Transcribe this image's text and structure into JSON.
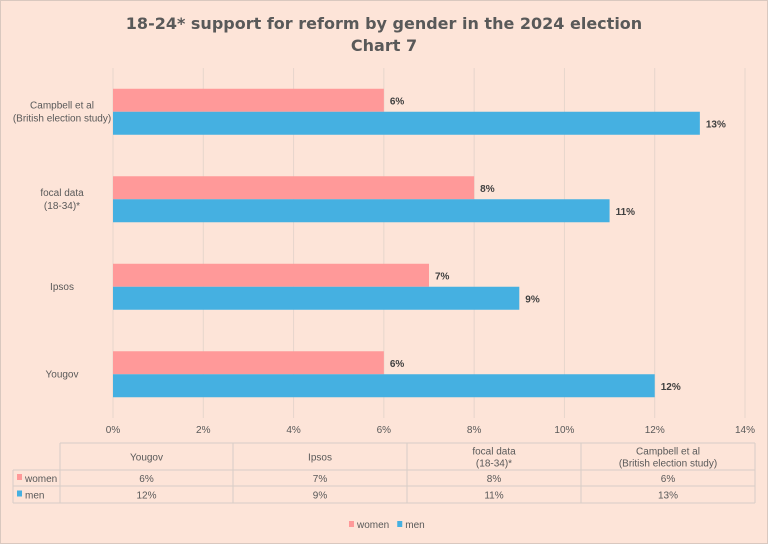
{
  "chart_data": {
    "type": "bar",
    "orientation": "horizontal",
    "title": "18-24* support for reform by gender in the 2024 election",
    "subtitle": "Chart 7",
    "categories": [
      [
        "Yougov"
      ],
      [
        "Ipsos"
      ],
      [
        "focal data",
        "(18-34)*"
      ],
      [
        "Campbell et al",
        "(British election study)"
      ]
    ],
    "series": [
      {
        "name": "women",
        "color": "#ff9999",
        "values": [
          6,
          7,
          8,
          6
        ],
        "labels": [
          "6%",
          "7%",
          "8%",
          "6%"
        ]
      },
      {
        "name": "men",
        "color": "#45b0e1",
        "values": [
          12,
          9,
          11,
          13
        ],
        "labels": [
          "12%",
          "9%",
          "11%",
          "13%"
        ]
      }
    ],
    "xlim": [
      0,
      14
    ],
    "xticks": [
      "0%",
      "2%",
      "4%",
      "6%",
      "8%",
      "10%",
      "12%",
      "14%"
    ],
    "grid": true,
    "data_table": true,
    "legend": "bottom"
  }
}
